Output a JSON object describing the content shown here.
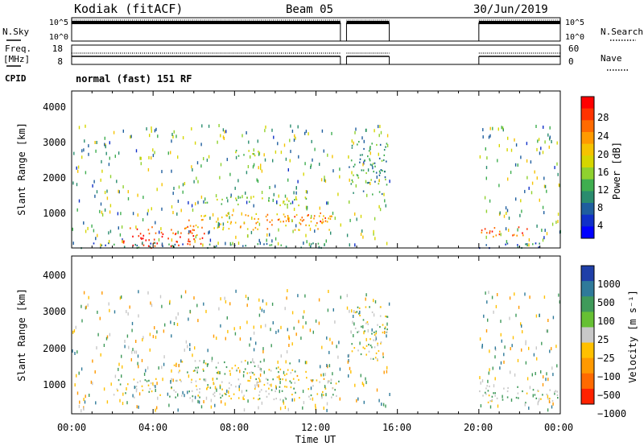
{
  "header": {
    "title": "Kodiak (fitACF)",
    "beam": "Beam 05",
    "date": "30/Jun/2019"
  },
  "left_labels": {
    "nsky": "N.Sky",
    "freq_line1": "Freq.",
    "freq_line2": "[MHz]",
    "cpid": "CPID"
  },
  "right_labels": {
    "nsearch": "N.Search",
    "nave": "Nave"
  },
  "noise_ticks_left": [
    "10^5",
    "10^0"
  ],
  "noise_ticks_right": [
    "10^5",
    "10^0"
  ],
  "freq_ticks_left": [
    "18",
    "8"
  ],
  "freq_ticks_right": [
    "60",
    "0"
  ],
  "cpid_text": "normal (fast) 151 RF",
  "time_ticks": [
    "00:00",
    "04:00",
    "08:00",
    "12:00",
    "16:00",
    "20:00",
    "00:00"
  ],
  "xlabel": "Time UT",
  "range_ticks": [
    "4000",
    "3000",
    "2000",
    "1000"
  ],
  "ylabel": "Slant Range [km]",
  "power_colorbar": {
    "label": "Power [dB]",
    "ticks": [
      "28",
      "24",
      "20",
      "16",
      "12",
      "8",
      "4"
    ],
    "colors": [
      "#ff0000",
      "#ff3300",
      "#ff6a00",
      "#ff9a00",
      "#f5c300",
      "#d6d600",
      "#8fd12e",
      "#3fae4f",
      "#2a8c6e",
      "#1f5e9e",
      "#1030c8",
      "#0000ff"
    ]
  },
  "velocity_colorbar": {
    "label": "Velocity [m s⁻¹]",
    "ticks": [
      "1000",
      "500",
      "100",
      "25",
      "−25",
      "−100",
      "−500",
      "−1000"
    ],
    "colors": [
      "#1f3fa8",
      "#2f7a9a",
      "#3f9a5a",
      "#66c033",
      "#c8c8c8",
      "#ffc000",
      "#ff9900",
      "#ff6a00",
      "#ff2200"
    ]
  },
  "chart_data": [
    {
      "type": "line",
      "title": "N.Sky / N.Search",
      "x_range_hours": [
        0,
        24
      ],
      "data_gaps_hours": [
        [
          13.2,
          13.5
        ],
        [
          15.6,
          20.0
        ]
      ]
    },
    {
      "type": "line",
      "title": "Freq. / Nave",
      "x_range_hours": [
        0,
        24
      ],
      "freq_MHz_approx": 10.5,
      "data_gaps_hours": [
        [
          13.2,
          13.5
        ],
        [
          15.6,
          20.0
        ]
      ]
    },
    {
      "type": "heatmap",
      "title": "Power",
      "xlabel": "Time UT",
      "ylabel": "Slant Range [km]",
      "x_range_hours": [
        0,
        24
      ],
      "ylim_km": [
        180,
        4600
      ],
      "zlabel": "Power [dB]",
      "zlim": [
        0,
        30
      ],
      "regions": [
        {
          "t": [
            2.5,
            6.5
          ],
          "r": [
            200,
            800
          ],
          "v": 26
        },
        {
          "t": [
            5.5,
            12.8
          ],
          "r": [
            700,
            1200
          ],
          "v": 20
        },
        {
          "t": [
            9.5,
            12.5
          ],
          "r": [
            900,
            1150
          ],
          "v": 24
        },
        {
          "t": [
            6.5,
            11.5
          ],
          "r": [
            1400,
            1650
          ],
          "v": 13
        },
        {
          "t": [
            0.3,
            13.2
          ],
          "r": [
            200,
            350
          ],
          "v": 8
        },
        {
          "t": [
            20.0,
            24.0
          ],
          "r": [
            200,
            350
          ],
          "v": 8
        },
        {
          "t": [
            20.0,
            22.5
          ],
          "r": [
            500,
            800
          ],
          "v": 24
        },
        {
          "t": [
            8.0,
            9.5
          ],
          "r": [
            2750,
            3000
          ],
          "v": 14
        },
        {
          "t": [
            13.6,
            15.5
          ],
          "r": [
            1700,
            3200
          ],
          "v": 10
        }
      ]
    },
    {
      "type": "heatmap",
      "title": "Velocity",
      "xlabel": "Time UT",
      "ylabel": "Slant Range [km]",
      "x_range_hours": [
        0,
        24
      ],
      "ylim_km": [
        180,
        4600
      ],
      "zlabel": "Velocity [m s⁻¹]",
      "zlim": [
        -1000,
        1000
      ],
      "regions": [
        {
          "t": [
            2.0,
            13.2
          ],
          "r": [
            600,
            1200
          ],
          "v": 0
        },
        {
          "t": [
            5.0,
            11.5
          ],
          "r": [
            1300,
            1700
          ],
          "v": 0
        },
        {
          "t": [
            10.0,
            12.5
          ],
          "r": [
            1100,
            1300
          ],
          "v": -100
        },
        {
          "t": [
            20.0,
            24.0
          ],
          "r": [
            500,
            1000
          ],
          "v": 0
        },
        {
          "t": [
            13.6,
            15.5
          ],
          "r": [
            1700,
            3200
          ],
          "v": 0
        }
      ]
    }
  ]
}
